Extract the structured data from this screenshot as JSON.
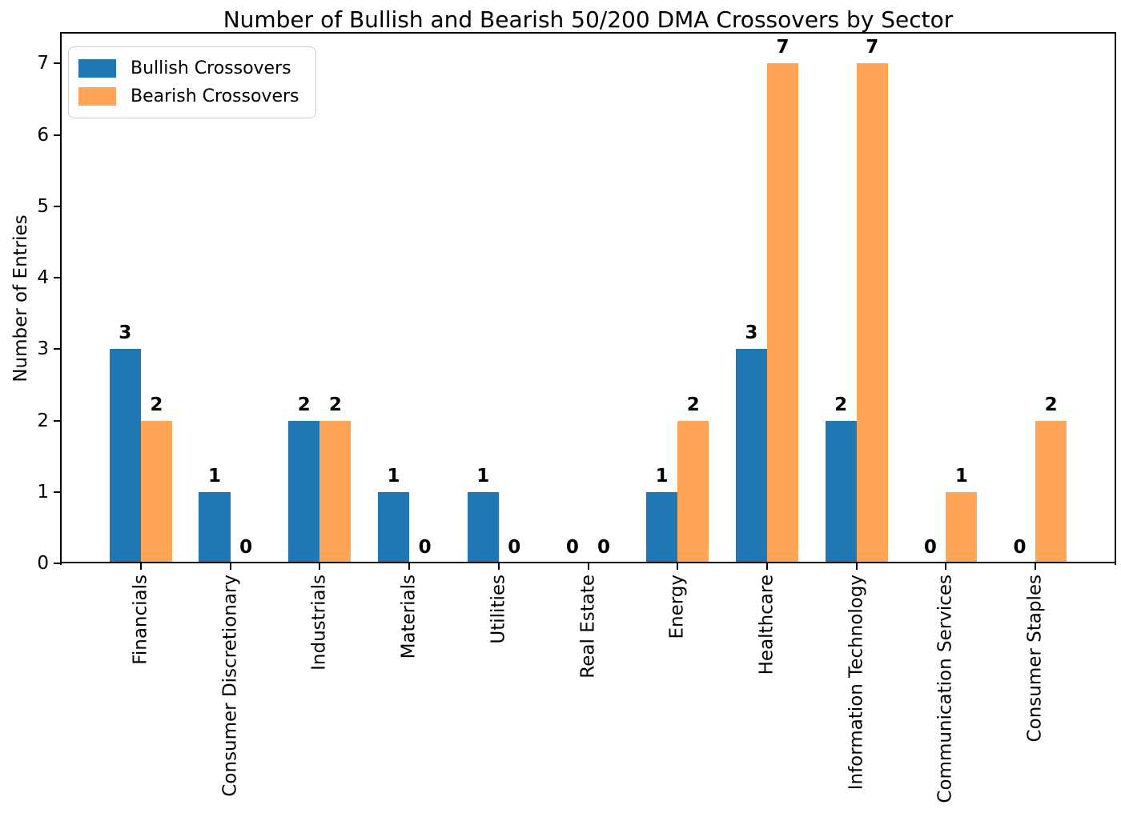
{
  "chart_data": {
    "type": "bar",
    "title": "Number of Bullish and Bearish 50/200 DMA Crossovers by Sector",
    "xlabel": "",
    "ylabel": "Number of Entries",
    "categories": [
      "Financials",
      "Consumer Discretionary",
      "Industrials",
      "Materials",
      "Utilities",
      "Real Estate",
      "Energy",
      "Healthcare",
      "Information Technology",
      "Communication Services",
      "Consumer Staples"
    ],
    "series": [
      {
        "name": "Bullish Crossovers",
        "color": "#1f77b4",
        "values": [
          3,
          1,
          2,
          1,
          1,
          0,
          1,
          3,
          2,
          0,
          0
        ]
      },
      {
        "name": "Bearish Crossovers",
        "color": "#ffa556",
        "values": [
          2,
          0,
          2,
          0,
          0,
          0,
          2,
          7,
          7,
          1,
          2
        ]
      }
    ],
    "yticks": [
      0,
      1,
      2,
      3,
      4,
      5,
      6,
      7
    ],
    "ylim": [
      0,
      7.42
    ],
    "bar_value_labels": true,
    "legend_position": "upper left",
    "grid": false,
    "x_tick_rotation": 90,
    "colors": {
      "axis": "#000000",
      "text": "#000000",
      "legend_border": "#cccccc"
    }
  }
}
